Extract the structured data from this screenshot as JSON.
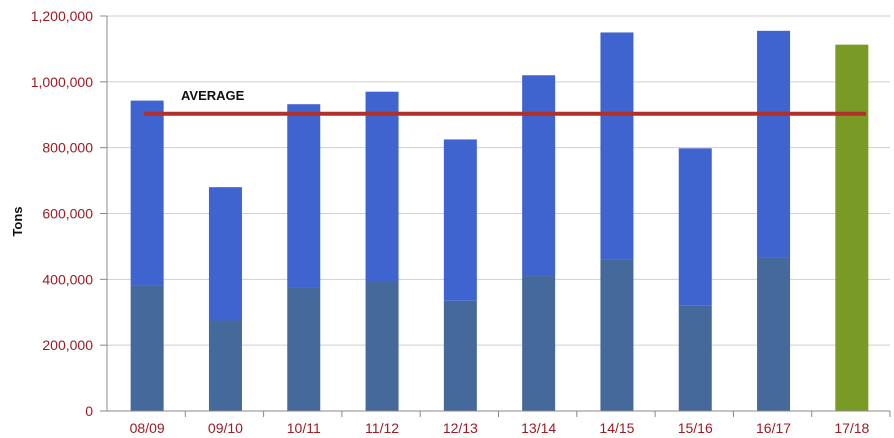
{
  "chart_data": {
    "type": "bar",
    "title": "",
    "xlabel": "",
    "ylabel": "Tons",
    "ylim": [
      0,
      1200000
    ],
    "yticks": [
      0,
      200000,
      400000,
      600000,
      800000,
      1000000,
      1200000
    ],
    "ytick_labels": [
      "0",
      "200,000",
      "400,000",
      "600,000",
      "800,000",
      "1,000,000",
      "1,200,000"
    ],
    "categories": [
      "08/09",
      "09/10",
      "10/11",
      "11/12",
      "12/13",
      "13/14",
      "14/15",
      "15/16",
      "16/17",
      "17/18"
    ],
    "stacked": true,
    "series": [
      {
        "color": "#45699a",
        "values": [
          380000,
          275000,
          375000,
          395000,
          335000,
          410000,
          460000,
          320000,
          465000,
          0
        ]
      },
      {
        "color": "#3f63cf",
        "values": [
          563000,
          405000,
          557000,
          575000,
          490000,
          610000,
          690000,
          478000,
          690000,
          0
        ]
      },
      {
        "color": "#7a9a26",
        "values": [
          0,
          0,
          0,
          0,
          0,
          0,
          0,
          0,
          0,
          1113000
        ]
      }
    ],
    "reference_line": {
      "label": "AVERAGE",
      "value": 903000,
      "color": "#b0302b"
    },
    "grid": "horizontal",
    "legend": "none"
  }
}
